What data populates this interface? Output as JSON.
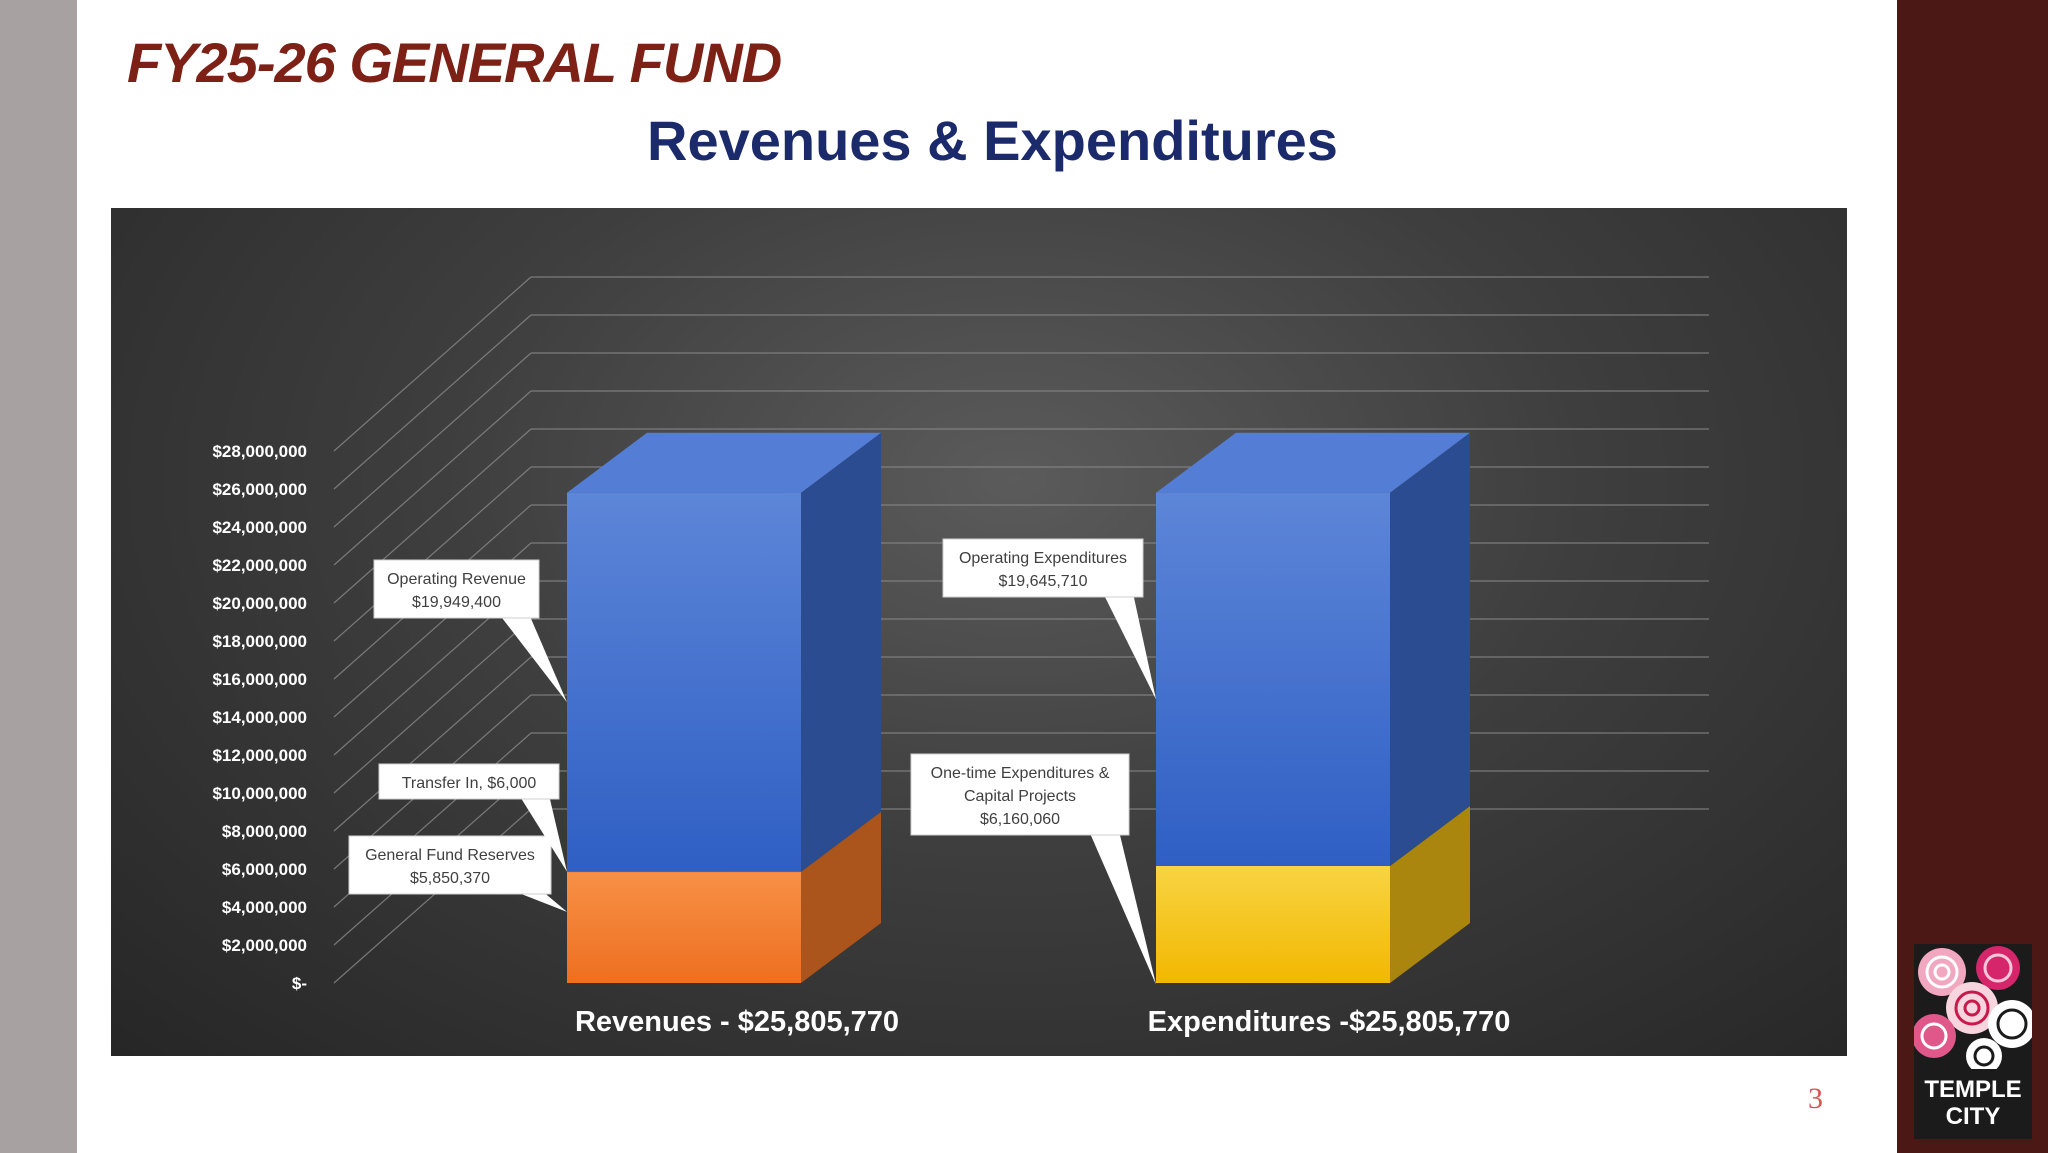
{
  "slide": {
    "title": "FY25-26 GENERAL FUND",
    "subtitle": "Revenues & Expenditures",
    "page_number": "3",
    "logo_text": [
      "TEMPLE",
      "CITY"
    ]
  },
  "colors": {
    "title": "#7d2016",
    "subtitle": "#1b2a6b",
    "operating": "#3d6ccf",
    "reserves": "#f47a2a",
    "one_time": "#f3c014",
    "right_band": "#4b1816",
    "left_band": "#a8a1a2"
  },
  "chart_data": {
    "type": "bar",
    "stacked": true,
    "three_d": true,
    "categories": [
      "Revenues - $25,805,770",
      "Expenditures -$25,805,770"
    ],
    "ylim": [
      0,
      28000000
    ],
    "ytick_step": 2000000,
    "y_ticks": [
      "$-",
      "$2,000,000",
      "$4,000,000",
      "$6,000,000",
      "$8,000,000",
      "$10,000,000",
      "$12,000,000",
      "$14,000,000",
      "$16,000,000",
      "$18,000,000",
      "$20,000,000",
      "$22,000,000",
      "$24,000,000",
      "$26,000,000",
      "$28,000,000"
    ],
    "grid": true,
    "segments": [
      {
        "category": 0,
        "value": 5850370,
        "color": "#f47a2a",
        "callout": [
          "General Fund Reserves",
          "$5,850,370"
        ]
      },
      {
        "category": 0,
        "value": 6000,
        "color": "#f47a2a",
        "callout": [
          "Transfer In,  $6,000"
        ]
      },
      {
        "category": 0,
        "value": 19949400,
        "color": "#3d6ccf",
        "callout": [
          "Operating Revenue",
          "$19,949,400"
        ]
      },
      {
        "category": 1,
        "value": 6160060,
        "color": "#f3c014",
        "callout": [
          "One-time Expenditures &",
          "Capital Projects",
          "$6,160,060"
        ]
      },
      {
        "category": 1,
        "value": 19645710,
        "color": "#3d6ccf",
        "callout": [
          "Operating Expenditures",
          "$19,645,710"
        ]
      }
    ]
  }
}
